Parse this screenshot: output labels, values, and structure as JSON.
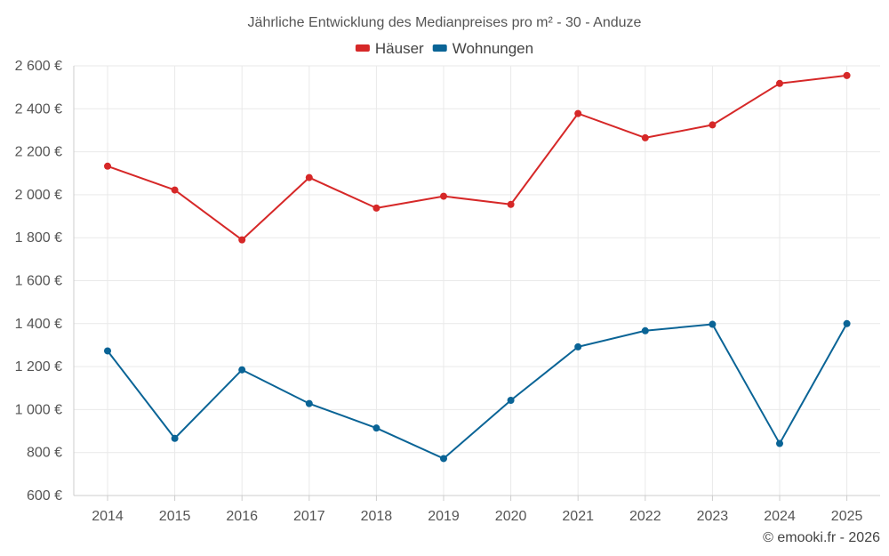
{
  "chart_data": {
    "type": "line",
    "title": "Jährliche Entwicklung des Medianpreises pro m² - 30 - Anduze",
    "categories": [
      "2014",
      "2015",
      "2016",
      "2017",
      "2018",
      "2019",
      "2020",
      "2021",
      "2022",
      "2023",
      "2024",
      "2025"
    ],
    "series": [
      {
        "name": "Häuser",
        "color": "#d62828",
        "values": [
          2133,
          2022,
          1790,
          2080,
          1938,
          1993,
          1955,
          2378,
          2265,
          2325,
          2518,
          2555
        ]
      },
      {
        "name": "Wohnungen",
        "color": "#0a6496",
        "values": [
          1273,
          866,
          1185,
          1028,
          914,
          772,
          1043,
          1292,
          1367,
          1397,
          842,
          1400
        ]
      }
    ],
    "ylim": [
      600,
      2600
    ],
    "yticks": [
      600,
      800,
      1000,
      1200,
      1400,
      1600,
      1800,
      2000,
      2200,
      2400,
      2600
    ],
    "ytick_labels": [
      "600 €",
      "800 €",
      "1 000 €",
      "1 200 €",
      "1 400 €",
      "1 600 €",
      "1 800 €",
      "2 000 €",
      "2 200 €",
      "2 400 €",
      "2 600 €"
    ],
    "grid": true,
    "legend_position": "top-center",
    "xlabel": "",
    "ylabel": ""
  },
  "credit": "© emooki.fr - 2026"
}
